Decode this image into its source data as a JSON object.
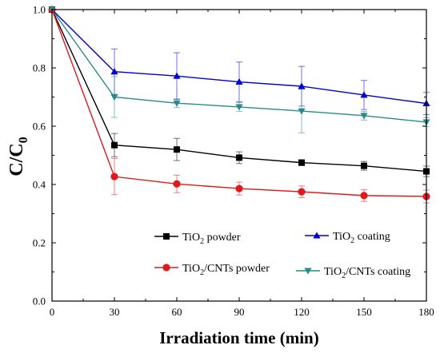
{
  "chart_data": {
    "type": "line",
    "title": "",
    "xlabel": "Irradiation time (min)",
    "ylabel": {
      "main": "C/C",
      "sub": "0"
    },
    "x": [
      0,
      30,
      60,
      90,
      120,
      150,
      180
    ],
    "xlim": [
      0,
      180
    ],
    "ylim": [
      0.0,
      1.0
    ],
    "xticks": [
      "0",
      "30",
      "60",
      "90",
      "120",
      "150",
      "180"
    ],
    "yticks": [
      "0.0",
      "0.2",
      "0.4",
      "0.6",
      "0.8",
      "1.0"
    ],
    "grid": false,
    "legend_position": "lower-center",
    "series": [
      {
        "key": "tio2-powder",
        "name_parts": [
          "TiO",
          "2",
          " powder"
        ],
        "color": "#000000",
        "marker": "square",
        "values": [
          1.0,
          0.535,
          0.52,
          0.492,
          0.475,
          0.464,
          0.445
        ],
        "errors": [
          0,
          0.04,
          0.038,
          0.02,
          0.01,
          0.015,
          0.018
        ]
      },
      {
        "key": "tio2-coating",
        "name_parts": [
          "TiO",
          "2",
          " coating"
        ],
        "color": "#0000cc",
        "marker": "triangle-up",
        "values": [
          1.0,
          0.787,
          0.772,
          0.752,
          0.737,
          0.707,
          0.678
        ],
        "errors": [
          0,
          0.078,
          0.08,
          0.068,
          0.068,
          0.05,
          0.038
        ]
      },
      {
        "key": "tio2-cnts-powder",
        "name_parts": [
          "TiO",
          "2",
          "/CNTs powder"
        ],
        "color": "#e0191c",
        "marker": "circle",
        "values": [
          1.0,
          0.427,
          0.402,
          0.386,
          0.375,
          0.362,
          0.359
        ],
        "errors": [
          0,
          0.062,
          0.03,
          0.022,
          0.02,
          0.02,
          0.022
        ]
      },
      {
        "key": "tio2-cnts-coating",
        "name_parts": [
          "TiO",
          "2",
          "/CNTs coating"
        ],
        "color": "#2a8a8a",
        "marker": "triangle-down",
        "values": [
          1.0,
          0.7,
          0.679,
          0.666,
          0.652,
          0.636,
          0.614
        ],
        "errors": [
          0,
          0.07,
          0.015,
          0.015,
          0.075,
          0.015,
          0.015
        ]
      }
    ]
  }
}
